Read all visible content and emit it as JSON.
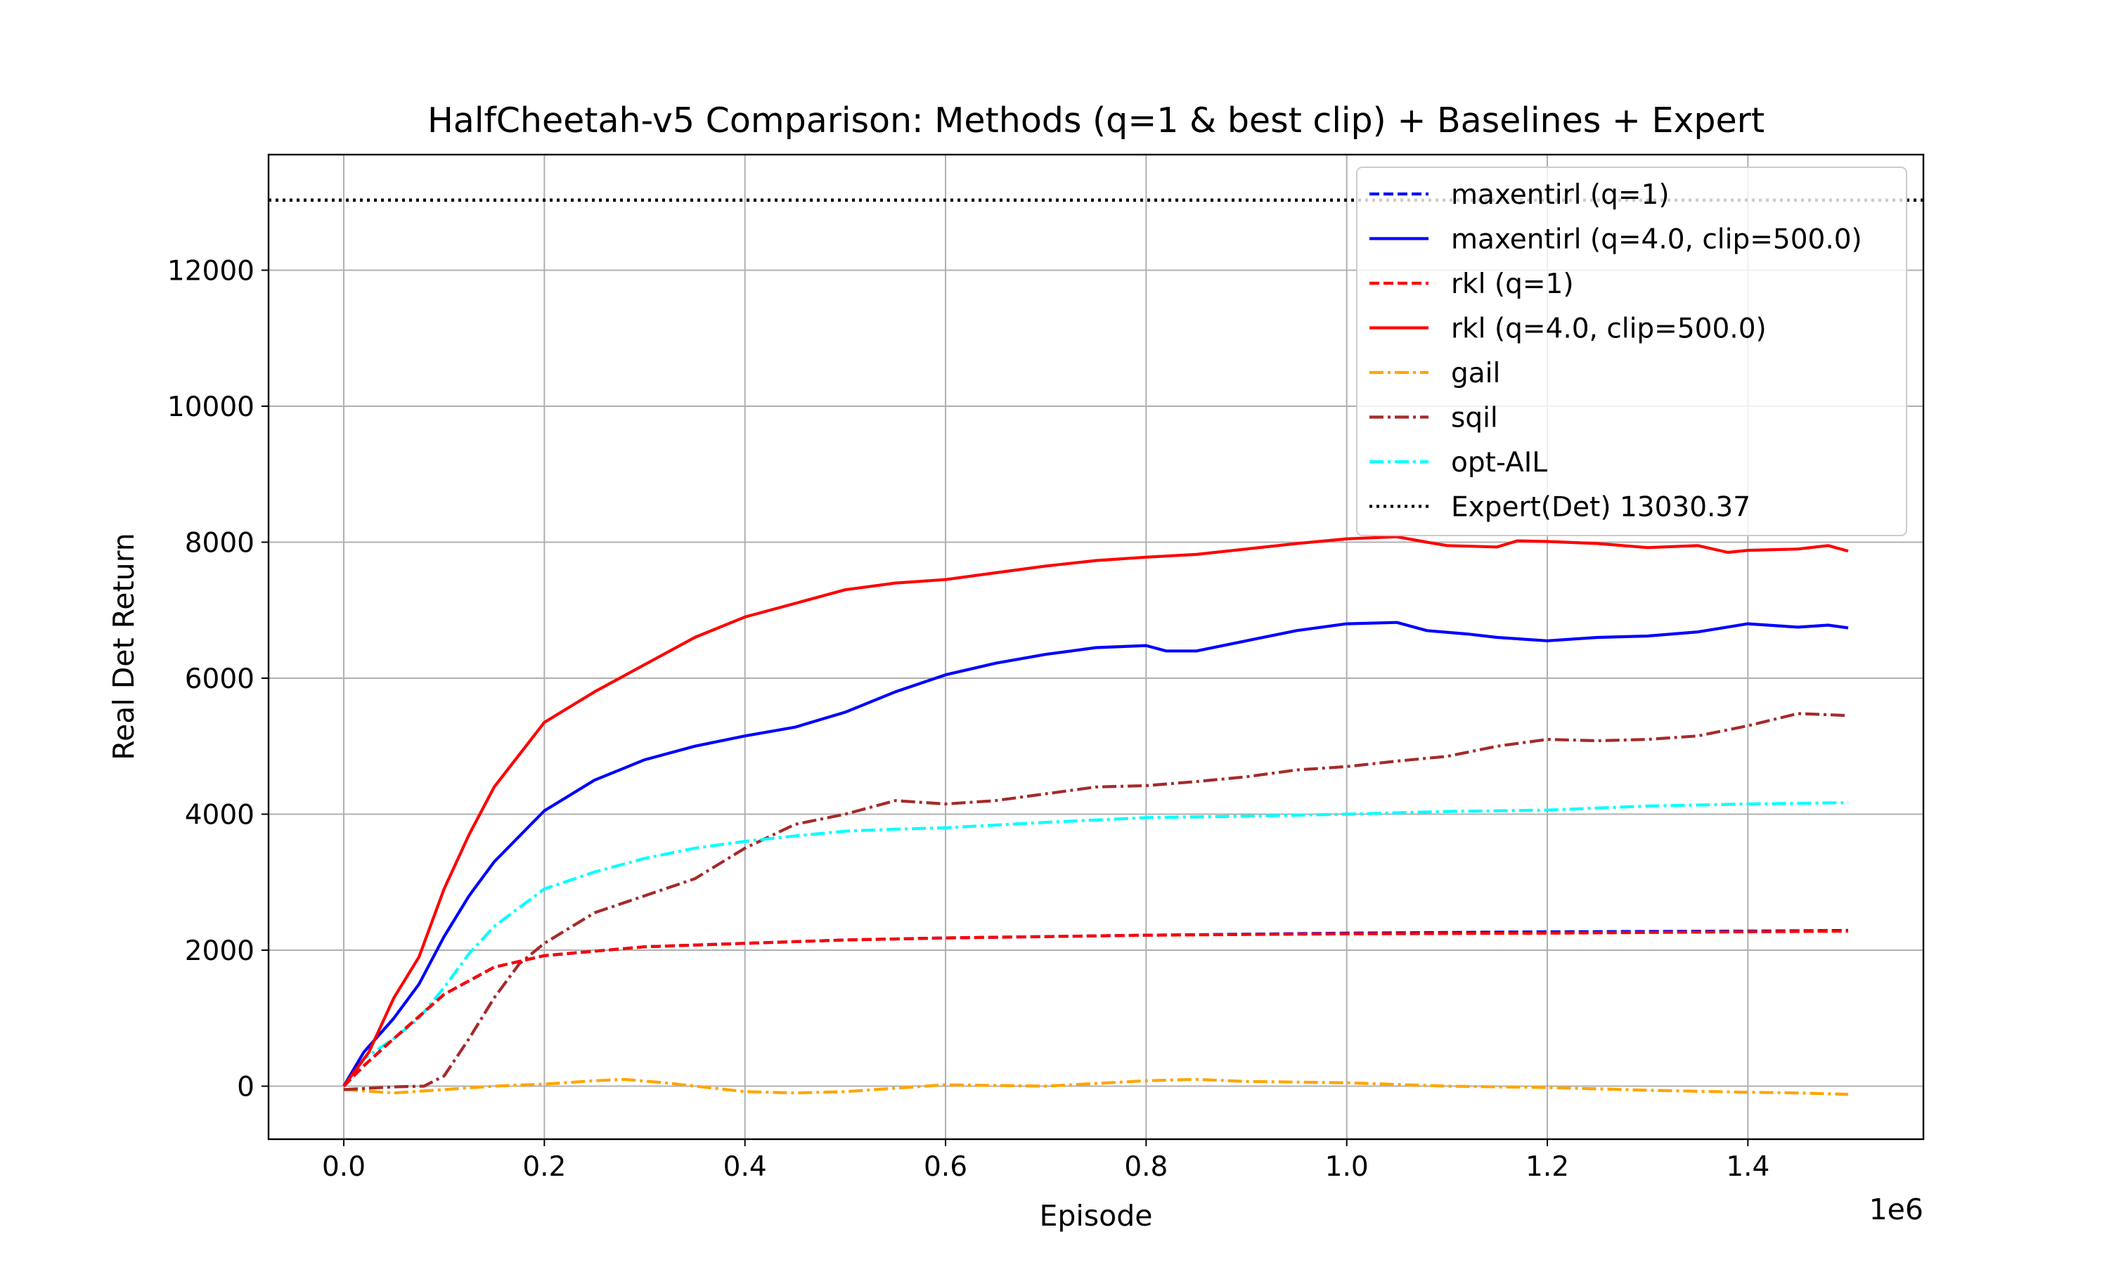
{
  "chart_data": {
    "type": "line",
    "title": "HalfCheetah-v5 Comparison: Methods (q=1 & best clip) + Baselines + Expert",
    "xlabel": "Episode",
    "ylabel": "Real Det Return",
    "x_offset_label": "1e6",
    "xlim": [
      -75000,
      1575000
    ],
    "ylim": [
      -780,
      13700
    ],
    "xticks": [
      0,
      200000,
      400000,
      600000,
      800000,
      1000000,
      1200000,
      1400000
    ],
    "xtick_labels": [
      "0.0",
      "0.2",
      "0.4",
      "0.6",
      "0.8",
      "1.0",
      "1.2",
      "1.4"
    ],
    "yticks": [
      0,
      2000,
      4000,
      6000,
      8000,
      10000,
      12000
    ],
    "ytick_labels": [
      "0",
      "2000",
      "4000",
      "6000",
      "8000",
      "10000",
      "12000"
    ],
    "grid": true,
    "legend_position": "upper right",
    "series": [
      {
        "name": "maxentirl (q=1)",
        "color": "#0000ff",
        "style": "dashed",
        "points": [
          [
            0,
            0
          ],
          [
            20000,
            300
          ],
          [
            50000,
            700
          ],
          [
            100000,
            1350
          ],
          [
            150000,
            1750
          ],
          [
            200000,
            1920
          ],
          [
            300000,
            2050
          ],
          [
            400000,
            2100
          ],
          [
            500000,
            2150
          ],
          [
            600000,
            2180
          ],
          [
            700000,
            2200
          ],
          [
            800000,
            2220
          ],
          [
            1000000,
            2250
          ],
          [
            1200000,
            2270
          ],
          [
            1400000,
            2280
          ],
          [
            1500000,
            2290
          ]
        ]
      },
      {
        "name": "maxentirl (q=4.0, clip=500.0)",
        "color": "#0000ff",
        "style": "solid",
        "points": [
          [
            0,
            0
          ],
          [
            20000,
            500
          ],
          [
            50000,
            1000
          ],
          [
            75000,
            1500
          ],
          [
            100000,
            2200
          ],
          [
            125000,
            2800
          ],
          [
            150000,
            3300
          ],
          [
            200000,
            4050
          ],
          [
            250000,
            4500
          ],
          [
            300000,
            4800
          ],
          [
            350000,
            5000
          ],
          [
            400000,
            5150
          ],
          [
            450000,
            5280
          ],
          [
            500000,
            5500
          ],
          [
            550000,
            5800
          ],
          [
            600000,
            6050
          ],
          [
            650000,
            6220
          ],
          [
            700000,
            6350
          ],
          [
            750000,
            6450
          ],
          [
            800000,
            6480
          ],
          [
            820000,
            6400
          ],
          [
            850000,
            6400
          ],
          [
            900000,
            6550
          ],
          [
            950000,
            6700
          ],
          [
            1000000,
            6800
          ],
          [
            1050000,
            6820
          ],
          [
            1080000,
            6700
          ],
          [
            1120000,
            6650
          ],
          [
            1150000,
            6600
          ],
          [
            1200000,
            6550
          ],
          [
            1250000,
            6600
          ],
          [
            1300000,
            6620
          ],
          [
            1350000,
            6680
          ],
          [
            1400000,
            6800
          ],
          [
            1450000,
            6750
          ],
          [
            1480000,
            6780
          ],
          [
            1500000,
            6740
          ]
        ]
      },
      {
        "name": "rkl (q=1)",
        "color": "#ff0000",
        "style": "dashed",
        "points": [
          [
            0,
            0
          ],
          [
            20000,
            300
          ],
          [
            50000,
            700
          ],
          [
            100000,
            1350
          ],
          [
            150000,
            1750
          ],
          [
            200000,
            1920
          ],
          [
            300000,
            2050
          ],
          [
            400000,
            2100
          ],
          [
            500000,
            2150
          ],
          [
            600000,
            2180
          ],
          [
            700000,
            2200
          ],
          [
            800000,
            2220
          ],
          [
            1000000,
            2240
          ],
          [
            1200000,
            2250
          ],
          [
            1400000,
            2270
          ],
          [
            1500000,
            2280
          ]
        ]
      },
      {
        "name": "rkl (q=4.0, clip=500.0)",
        "color": "#ff0000",
        "style": "solid",
        "points": [
          [
            0,
            0
          ],
          [
            25000,
            500
          ],
          [
            50000,
            1300
          ],
          [
            75000,
            1900
          ],
          [
            100000,
            2900
          ],
          [
            125000,
            3700
          ],
          [
            150000,
            4400
          ],
          [
            200000,
            5350
          ],
          [
            250000,
            5800
          ],
          [
            300000,
            6200
          ],
          [
            350000,
            6600
          ],
          [
            400000,
            6900
          ],
          [
            450000,
            7100
          ],
          [
            500000,
            7300
          ],
          [
            550000,
            7400
          ],
          [
            600000,
            7450
          ],
          [
            650000,
            7550
          ],
          [
            700000,
            7650
          ],
          [
            750000,
            7730
          ],
          [
            800000,
            7780
          ],
          [
            850000,
            7820
          ],
          [
            900000,
            7900
          ],
          [
            950000,
            7980
          ],
          [
            1000000,
            8050
          ],
          [
            1050000,
            8080
          ],
          [
            1080000,
            8000
          ],
          [
            1100000,
            7950
          ],
          [
            1150000,
            7930
          ],
          [
            1170000,
            8020
          ],
          [
            1200000,
            8010
          ],
          [
            1250000,
            7980
          ],
          [
            1300000,
            7920
          ],
          [
            1350000,
            7950
          ],
          [
            1380000,
            7850
          ],
          [
            1400000,
            7880
          ],
          [
            1450000,
            7900
          ],
          [
            1480000,
            7950
          ],
          [
            1500000,
            7870
          ]
        ]
      },
      {
        "name": "gail",
        "color": "#ffa500",
        "style": "dashdot",
        "points": [
          [
            0,
            -50
          ],
          [
            50000,
            -100
          ],
          [
            100000,
            -50
          ],
          [
            150000,
            0
          ],
          [
            200000,
            30
          ],
          [
            250000,
            80
          ],
          [
            280000,
            100
          ],
          [
            320000,
            50
          ],
          [
            400000,
            -80
          ],
          [
            450000,
            -100
          ],
          [
            500000,
            -80
          ],
          [
            600000,
            20
          ],
          [
            700000,
            0
          ],
          [
            750000,
            40
          ],
          [
            800000,
            80
          ],
          [
            850000,
            100
          ],
          [
            900000,
            70
          ],
          [
            1000000,
            50
          ],
          [
            1100000,
            0
          ],
          [
            1200000,
            -20
          ],
          [
            1300000,
            -60
          ],
          [
            1400000,
            -90
          ],
          [
            1450000,
            -100
          ],
          [
            1500000,
            -120
          ]
        ]
      },
      {
        "name": "sqil",
        "color": "#a52a2a",
        "style": "dashdot",
        "points": [
          [
            0,
            -50
          ],
          [
            50000,
            -10
          ],
          [
            80000,
            0
          ],
          [
            100000,
            150
          ],
          [
            125000,
            700
          ],
          [
            150000,
            1300
          ],
          [
            175000,
            1800
          ],
          [
            200000,
            2100
          ],
          [
            250000,
            2550
          ],
          [
            300000,
            2800
          ],
          [
            350000,
            3050
          ],
          [
            400000,
            3500
          ],
          [
            450000,
            3850
          ],
          [
            500000,
            4000
          ],
          [
            550000,
            4200
          ],
          [
            600000,
            4150
          ],
          [
            650000,
            4200
          ],
          [
            700000,
            4300
          ],
          [
            750000,
            4400
          ],
          [
            800000,
            4420
          ],
          [
            850000,
            4480
          ],
          [
            900000,
            4550
          ],
          [
            950000,
            4650
          ],
          [
            1000000,
            4700
          ],
          [
            1050000,
            4780
          ],
          [
            1100000,
            4850
          ],
          [
            1150000,
            5000
          ],
          [
            1200000,
            5100
          ],
          [
            1250000,
            5080
          ],
          [
            1300000,
            5100
          ],
          [
            1350000,
            5150
          ],
          [
            1400000,
            5300
          ],
          [
            1450000,
            5480
          ],
          [
            1500000,
            5450
          ]
        ]
      },
      {
        "name": "opt-AIL",
        "color": "#00ffff",
        "style": "dashdot",
        "points": [
          [
            0,
            0
          ],
          [
            20000,
            400
          ],
          [
            50000,
            700
          ],
          [
            75000,
            1000
          ],
          [
            100000,
            1450
          ],
          [
            125000,
            1950
          ],
          [
            150000,
            2350
          ],
          [
            200000,
            2900
          ],
          [
            250000,
            3150
          ],
          [
            300000,
            3350
          ],
          [
            350000,
            3500
          ],
          [
            400000,
            3600
          ],
          [
            450000,
            3680
          ],
          [
            500000,
            3750
          ],
          [
            550000,
            3780
          ],
          [
            600000,
            3800
          ],
          [
            700000,
            3880
          ],
          [
            800000,
            3950
          ],
          [
            900000,
            3970
          ],
          [
            1000000,
            4000
          ],
          [
            1100000,
            4040
          ],
          [
            1200000,
            4060
          ],
          [
            1300000,
            4120
          ],
          [
            1400000,
            4150
          ],
          [
            1500000,
            4170
          ]
        ]
      },
      {
        "name": "Expert(Det) 13030.37",
        "color": "#000000",
        "style": "dotted",
        "points": [
          [
            -75000,
            13030.37
          ],
          [
            1575000,
            13030.37
          ]
        ]
      }
    ]
  }
}
